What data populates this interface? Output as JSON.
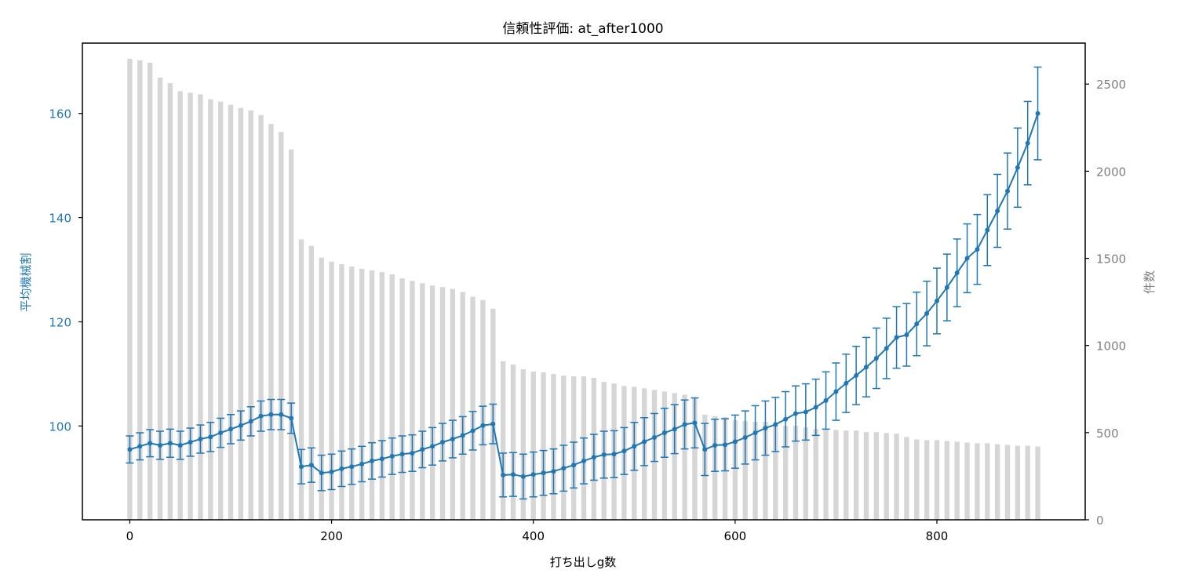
{
  "chart_data": {
    "type": "bar+line",
    "title": "信頼性評価: at_after1000",
    "xlabel": "打ち出しg数",
    "ylabel_left": "平均機械割",
    "ylabel_right": "件数",
    "xlim": [
      -47,
      947
    ],
    "ylim_left": [
      82.0,
      173.5
    ],
    "ylim_right": [
      0,
      2735
    ],
    "x_ticks": [
      0,
      200,
      400,
      600,
      800
    ],
    "y_left_ticks": [
      100,
      120,
      140,
      160
    ],
    "y_right_ticks": [
      0,
      500,
      1000,
      1500,
      2000,
      2500
    ],
    "grid": false,
    "colors": {
      "line": "#1f77b4",
      "bars": "#d6d6d6",
      "right_axis": "#808080",
      "left_axis": "#1f77b4"
    },
    "x": [
      0,
      10,
      20,
      30,
      40,
      50,
      60,
      70,
      80,
      90,
      100,
      110,
      120,
      130,
      140,
      150,
      160,
      170,
      180,
      190,
      200,
      210,
      220,
      230,
      240,
      250,
      260,
      270,
      280,
      290,
      300,
      310,
      320,
      330,
      340,
      350,
      360,
      370,
      380,
      390,
      400,
      410,
      420,
      430,
      440,
      450,
      460,
      470,
      480,
      490,
      500,
      510,
      520,
      530,
      540,
      550,
      560,
      570,
      580,
      590,
      600,
      610,
      620,
      630,
      640,
      650,
      660,
      670,
      680,
      690,
      700,
      710,
      720,
      730,
      740,
      750,
      760,
      770,
      780,
      790,
      800,
      810,
      820,
      830,
      840,
      850,
      860,
      870,
      880,
      890,
      900
    ],
    "series": [
      {
        "name": "件数",
        "type": "bar",
        "axis": "right",
        "values": [
          2645,
          2636,
          2623,
          2537,
          2505,
          2459,
          2450,
          2441,
          2413,
          2399,
          2381,
          2363,
          2349,
          2322,
          2271,
          2226,
          2125,
          1609,
          1572,
          1504,
          1481,
          1467,
          1453,
          1440,
          1431,
          1421,
          1408,
          1385,
          1371,
          1357,
          1344,
          1335,
          1325,
          1307,
          1280,
          1261,
          1211,
          910,
          891,
          864,
          850,
          846,
          836,
          827,
          823,
          823,
          814,
          791,
          782,
          768,
          763,
          754,
          745,
          736,
          727,
          718,
          699,
          603,
          594,
          590,
          571,
          567,
          562,
          562,
          548,
          539,
          539,
          530,
          521,
          516,
          516,
          512,
          512,
          503,
          503,
          498,
          494,
          475,
          461,
          457,
          457,
          452,
          448,
          443,
          439,
          439,
          434,
          430,
          425,
          425,
          420
        ]
      },
      {
        "name": "平均機械割",
        "type": "line",
        "axis": "left",
        "values": [
          95.5,
          96.1,
          96.7,
          96.3,
          96.7,
          96.3,
          96.9,
          97.5,
          97.9,
          98.7,
          99.4,
          100.1,
          100.9,
          101.9,
          102.2,
          102.2,
          101.5,
          92.2,
          92.5,
          91.0,
          91.2,
          91.8,
          92.2,
          92.7,
          93.3,
          93.7,
          94.2,
          94.6,
          94.8,
          95.5,
          96.1,
          96.9,
          97.5,
          98.2,
          99.1,
          100.1,
          100.4,
          90.6,
          90.7,
          90.3,
          90.7,
          91.0,
          91.3,
          91.9,
          92.5,
          93.3,
          94.0,
          94.5,
          94.6,
          95.2,
          96.1,
          97.0,
          97.8,
          98.7,
          99.4,
          100.3,
          100.6,
          95.5,
          96.3,
          96.4,
          97.0,
          97.8,
          98.7,
          99.6,
          100.3,
          101.3,
          102.4,
          102.7,
          103.6,
          104.9,
          106.6,
          108.2,
          109.7,
          111.3,
          113.0,
          114.9,
          117.0,
          117.5,
          119.6,
          121.6,
          124.0,
          126.6,
          129.4,
          132.2,
          133.9,
          137.6,
          141.3,
          145.1,
          149.6,
          154.3,
          160.0
        ],
        "error": [
          2.6,
          2.6,
          2.6,
          2.7,
          2.7,
          2.7,
          2.7,
          2.7,
          2.8,
          2.8,
          2.8,
          2.8,
          2.8,
          2.9,
          2.9,
          2.9,
          2.9,
          3.3,
          3.3,
          3.4,
          3.4,
          3.4,
          3.4,
          3.4,
          3.5,
          3.5,
          3.5,
          3.5,
          3.5,
          3.5,
          3.6,
          3.6,
          3.6,
          3.6,
          3.7,
          3.7,
          3.8,
          4.2,
          4.2,
          4.3,
          4.3,
          4.3,
          4.3,
          4.4,
          4.4,
          4.4,
          4.4,
          4.5,
          4.5,
          4.5,
          4.6,
          4.6,
          4.6,
          4.7,
          4.7,
          4.7,
          4.8,
          5.0,
          5.0,
          5.0,
          5.1,
          5.1,
          5.2,
          5.2,
          5.2,
          5.3,
          5.3,
          5.4,
          5.4,
          5.5,
          5.5,
          5.6,
          5.6,
          5.7,
          5.8,
          5.8,
          5.9,
          6.0,
          6.1,
          6.2,
          6.3,
          6.4,
          6.5,
          6.6,
          6.7,
          6.8,
          7.0,
          7.3,
          7.6,
          8.0,
          8.9
        ]
      }
    ]
  }
}
